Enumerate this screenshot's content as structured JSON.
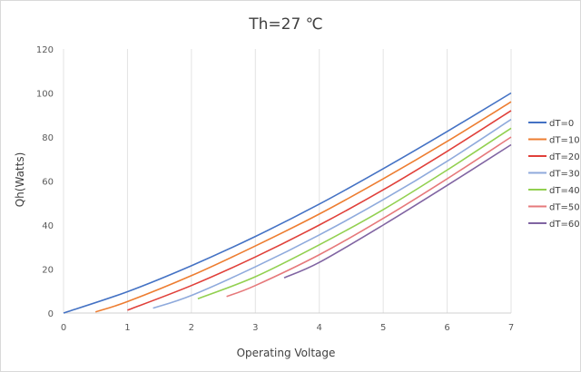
{
  "chart_data": {
    "type": "line",
    "title": "Th=27 ℃",
    "xlabel": "Operating Voltage",
    "ylabel": "Qh(Watts)",
    "xlim": [
      0,
      7
    ],
    "ylim": [
      0,
      120
    ],
    "x_ticks": [
      "0",
      "1",
      "2",
      "3",
      "4",
      "5",
      "6",
      "7"
    ],
    "y_ticks": [
      "0",
      "20",
      "40",
      "60",
      "80",
      "100",
      "120"
    ],
    "grid": "vertical",
    "legend_position": "right",
    "series": [
      {
        "name": "dT=0",
        "color": "#4472c4",
        "x": [
          0,
          1,
          2,
          3,
          4,
          5,
          6,
          7
        ],
        "y": [
          0,
          9.7,
          21.5,
          34.8,
          49.5,
          65.6,
          82.5,
          100
        ]
      },
      {
        "name": "dT=10",
        "color": "#ed7d31",
        "x": [
          0.5,
          1,
          2,
          3,
          4,
          5,
          6,
          7
        ],
        "y": [
          0.5,
          5.2,
          17,
          30.5,
          45,
          61,
          78,
          96
        ]
      },
      {
        "name": "dT=20",
        "color": "#e0403a",
        "x": [
          1,
          2,
          3,
          4,
          5,
          6,
          7
        ],
        "y": [
          1.3,
          12.5,
          25.5,
          40,
          56,
          73.5,
          92
        ]
      },
      {
        "name": "dT=30",
        "color": "#8faadc",
        "x": [
          1.4,
          2,
          3,
          4,
          5,
          6,
          7
        ],
        "y": [
          2.2,
          8,
          21,
          35.5,
          51.5,
          69,
          88
        ]
      },
      {
        "name": "dT=40",
        "color": "#92d050",
        "x": [
          2.1,
          3,
          4,
          5,
          6,
          7
        ],
        "y": [
          6.5,
          16.5,
          31,
          47,
          65,
          84
        ]
      },
      {
        "name": "dT=50",
        "color": "#e6797b",
        "x": [
          2.55,
          3,
          4,
          5,
          6,
          7
        ],
        "y": [
          7.5,
          12.5,
          26.5,
          43,
          61,
          80
        ]
      },
      {
        "name": "dT=60",
        "color": "#8064a2",
        "x": [
          3.45,
          4,
          5,
          6,
          7
        ],
        "y": [
          16,
          23,
          40,
          58,
          76.5
        ]
      }
    ]
  }
}
